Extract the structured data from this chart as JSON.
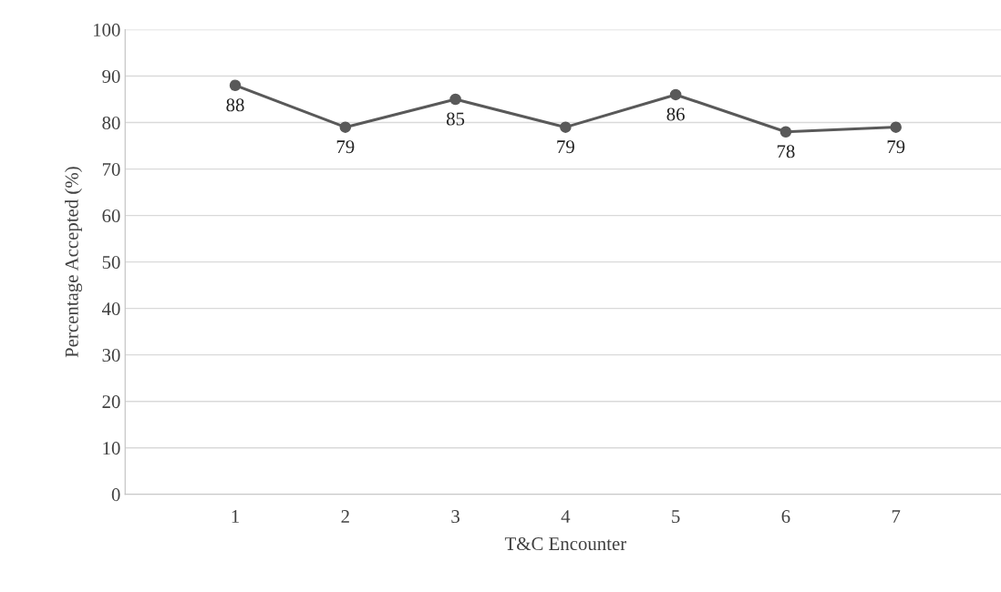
{
  "chart_data": {
    "type": "line",
    "xlabel": "T&C Encounter",
    "ylabel": "Percentage Accepted (%)",
    "categories": [
      "1",
      "2",
      "3",
      "4",
      "5",
      "6",
      "7"
    ],
    "series": [
      {
        "color": "#595959",
        "values": [
          88,
          79,
          85,
          79,
          86,
          78,
          79
        ]
      }
    ],
    "ylim": [
      0,
      100
    ],
    "yticks": [
      0,
      10,
      20,
      30,
      40,
      50,
      60,
      70,
      80,
      90,
      100
    ],
    "grid": "y",
    "marker": "circle",
    "line_style": "solid",
    "data_labels": true,
    "legend": false
  }
}
